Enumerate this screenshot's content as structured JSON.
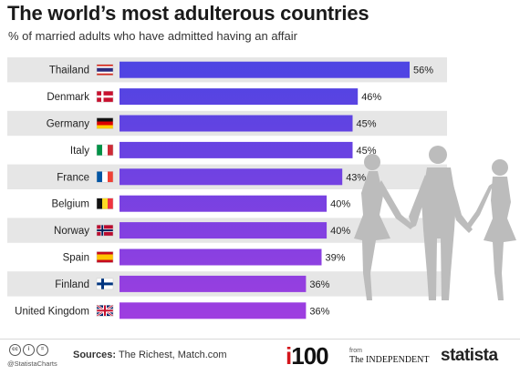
{
  "title": "The world’s most adulterous countries",
  "subtitle": "% of married adults who have admitted having an affair",
  "colors": {
    "row_band": "#e6e6e6",
    "bar_top": "#4b45e3",
    "bar_bottom": "#a03ee0",
    "silhouette": "#bcbcbc",
    "text": "#222222"
  },
  "chart_data": {
    "type": "bar",
    "orientation": "horizontal",
    "categories": [
      "Thailand",
      "Denmark",
      "Germany",
      "Italy",
      "France",
      "Belgium",
      "Norway",
      "Spain",
      "Finland",
      "United Kingdom"
    ],
    "values": [
      56,
      46,
      45,
      45,
      43,
      40,
      40,
      39,
      36,
      36
    ],
    "value_labels": [
      "56%",
      "46%",
      "45%",
      "45%",
      "43%",
      "40%",
      "40%",
      "39%",
      "36%",
      "36%"
    ],
    "unit": "%",
    "xlim": [
      0,
      100
    ],
    "grid": false,
    "flags": [
      "thailand-flag-icon",
      "denmark-flag-icon",
      "germany-flag-icon",
      "italy-flag-icon",
      "france-flag-icon",
      "belgium-flag-icon",
      "norway-flag-icon",
      "spain-flag-icon",
      "finland-flag-icon",
      "uk-flag-icon"
    ]
  },
  "footer": {
    "handle": "@StatistaCharts",
    "sources_label": "Sources:",
    "sources_text": "The Richest, Match.com",
    "logo_i100": "i100",
    "logo_from": "from",
    "logo_independent": "The INDEPENDENT",
    "logo_statista": "statista"
  }
}
